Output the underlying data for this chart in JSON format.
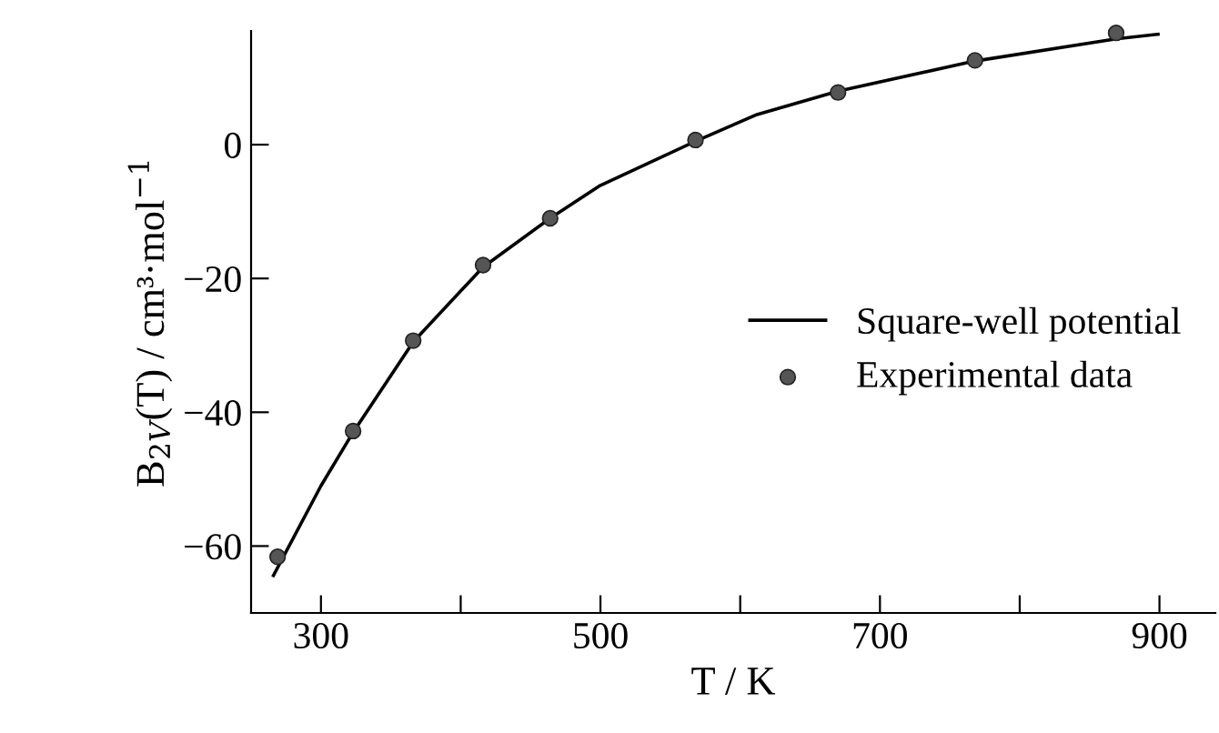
{
  "chart_data": {
    "type": "line",
    "xlabel": "T / K",
    "ylabel": "B$_{2V}$(T) / cm³·mol$^{−1}$",
    "xlim": [
      250,
      940
    ],
    "ylim": [
      -70,
      17
    ],
    "xticks": [
      300,
      {
        "value": 400,
        "label": null
      },
      500,
      {
        "value": 600,
        "label": null
      },
      700,
      {
        "value": 800,
        "label": null
      },
      900
    ],
    "yticks": [
      {
        "value": -60,
        "label": "−60"
      },
      {
        "value": -40,
        "label": "−40"
      },
      {
        "value": -20,
        "label": "−20"
      },
      0
    ],
    "grid": false,
    "legend": "right",
    "series": [
      {
        "name": "Square-well potential",
        "color": "#000000",
        "marker": "none",
        "line_style": "solid",
        "x": [
          266,
          300,
          323,
          366,
          416,
          464,
          499,
          568,
          612,
          670,
          768,
          869,
          899
        ],
        "values": [
          -64.4,
          -51,
          -43,
          -29.5,
          -18.3,
          -11,
          -6.2,
          0.5,
          4.5,
          8,
          12.5,
          15.8,
          16.5
        ]
      },
      {
        "name": "Experimental data",
        "type": "scatter",
        "color": "#555555",
        "marker": "circle",
        "x": [
          269,
          323,
          366,
          416,
          464,
          568,
          670,
          768,
          869
        ],
        "values": [
          -61.6,
          -42.8,
          -29.3,
          -18,
          -11,
          0.7,
          7.8,
          12.6,
          16.7
        ]
      }
    ]
  }
}
